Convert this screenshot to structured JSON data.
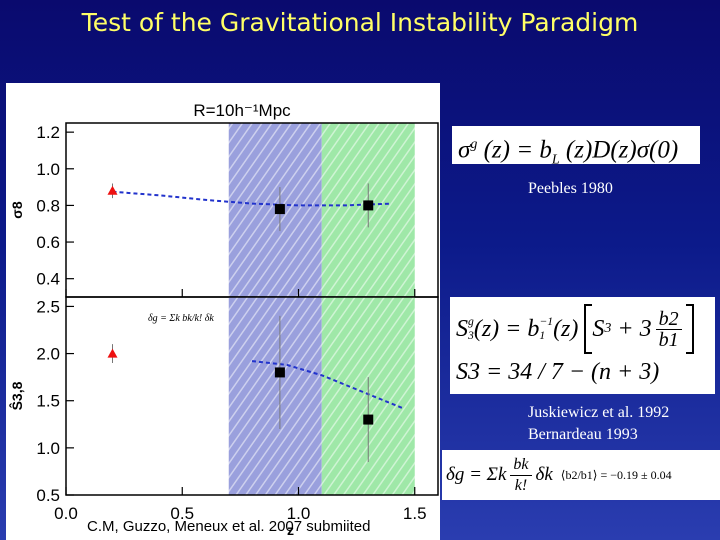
{
  "slide": {
    "title": "Test of the Gravitational Instability Paradigm",
    "credit": "C.M, Guzzo, Meneux et al. 2007 submiited"
  },
  "equations": {
    "eq1": "σ g (z) = bL(z)D(z)σ(0)",
    "eq1_lhs": "σ",
    "eq1_sup": "g",
    "eq1_rhs": "(z) = b",
    "eq1_sub": "L",
    "eq1_tail": "(z)D(z)σ(0)",
    "eq1_ref": "Peebles 1980",
    "eq2_row1_a": "S",
    "eq2_row1_a_sub": "3",
    "eq2_row1_a_sup": "g",
    "eq2_row1_b": "(z) = b",
    "eq2_row1_b_sup": "−1",
    "eq2_row1_b_sub": "1",
    "eq2_row1_c": "(z)",
    "eq2_row1_d": "S",
    "eq2_row1_d_sub": "3",
    "eq2_row1_e": "+ 3",
    "eq2_frac_num": "b2",
    "eq2_frac_den": "b1",
    "eq2_row2": "S3 = 34 / 7 − (n + 3)",
    "eq2_ref_1": "Juskiewicz et al. 1992",
    "eq2_ref_2": "Bernardeau 1993",
    "eq3_lhs": "δg = Σk",
    "eq3_frac_num": "bk",
    "eq3_frac_den": "k!",
    "eq3_tail": "δk",
    "eq3_value": "⟨b2/b1⟩ = −0.19 ± 0.04"
  },
  "chart_data": [
    {
      "type": "scatter",
      "title": "R=10h⁻¹Mpc",
      "ylabel": "σ8",
      "ylim": [
        0.3,
        1.25
      ],
      "yticks": [
        "0.4",
        "0.6",
        "0.8",
        "1.0",
        "1.2"
      ],
      "xlim": [
        0.0,
        1.6
      ],
      "shaded_bands": [
        {
          "x": [
            0.7,
            1.1
          ],
          "color": "#9aa0dd"
        },
        {
          "x": [
            1.1,
            1.5
          ],
          "color": "#9fe8a8"
        }
      ],
      "series": [
        {
          "marker": "triangle",
          "color": "#ee1111",
          "points": [
            {
              "x": 0.2,
              "y": 0.88,
              "yerr": 0.04
            }
          ]
        },
        {
          "marker": "square",
          "color": "#000000",
          "points": [
            {
              "x": 0.92,
              "y": 0.78,
              "yerr": 0.12
            },
            {
              "x": 1.3,
              "y": 0.8,
              "yerr": 0.12
            }
          ]
        }
      ],
      "model_curve": {
        "color": "#2233cc",
        "x": [
          0.2,
          0.4,
          0.6,
          0.8,
          1.0,
          1.2,
          1.4
        ],
        "y": [
          0.875,
          0.855,
          0.83,
          0.81,
          0.8,
          0.8,
          0.81
        ]
      }
    },
    {
      "type": "scatter",
      "ylabel": "Ŝ3,8",
      "xlabel": "z",
      "annotation": "δg = Σk bk/k! δk",
      "ylim": [
        0.5,
        2.6
      ],
      "yticks": [
        "0.5",
        "1.0",
        "1.5",
        "2.0",
        "2.5"
      ],
      "xlim": [
        0.0,
        1.6
      ],
      "xticks": [
        "0.0",
        "0.5",
        "1.0",
        "1.5"
      ],
      "shaded_bands": [
        {
          "x": [
            0.7,
            1.1
          ],
          "color": "#9aa0dd"
        },
        {
          "x": [
            1.1,
            1.5
          ],
          "color": "#9fe8a8"
        }
      ],
      "series": [
        {
          "marker": "triangle",
          "color": "#ee1111",
          "points": [
            {
              "x": 0.2,
              "y": 2.0,
              "yerr": 0.1
            }
          ]
        },
        {
          "marker": "square",
          "color": "#000000",
          "points": [
            {
              "x": 0.92,
              "y": 1.8,
              "yerr": 0.6
            },
            {
              "x": 1.3,
              "y": 1.3,
              "yerr": 0.45
            }
          ]
        }
      ],
      "model_curve": {
        "color": "#2233cc",
        "x": [
          0.8,
          0.95,
          1.1,
          1.25,
          1.45
        ],
        "y": [
          1.92,
          1.88,
          1.77,
          1.62,
          1.42
        ]
      }
    }
  ]
}
